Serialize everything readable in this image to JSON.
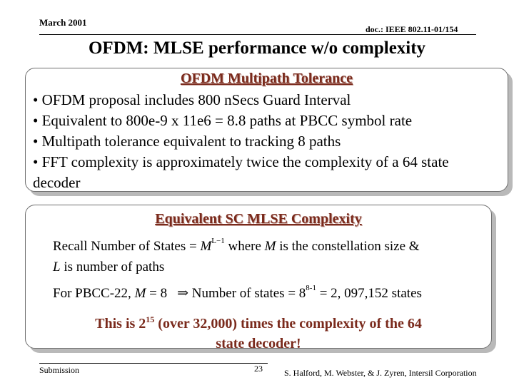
{
  "header": {
    "date": "March 2001",
    "doc_id": "doc.: IEEE 802.11-01/154"
  },
  "title": "OFDM: MLSE performance w/o complexity",
  "panel1": {
    "heading": "OFDM Multipath Tolerance",
    "bullets": [
      "• OFDM proposal includes 800 nSecs Guard Interval",
      "• Equivalent to 800e-9 x 11e6 = 8.8 paths at PBCC symbol rate",
      "• Multipath tolerance equivalent to tracking 8 paths",
      "• FFT complexity is approximately twice the complexity of a 64 state"
    ],
    "continuation": "decoder"
  },
  "panel2": {
    "heading": "Equivalent SC MLSE Complexity",
    "line1_a": "Recall  Number of States = ",
    "line1_M": "M",
    "line1_sup": "L−1",
    "line1_b": "  where ",
    "line1_M2": "M",
    "line1_c": " is the constellation size &",
    "line2_L": "L",
    "line2_rest": " is number of paths",
    "line3_a": "For PBCC-22, ",
    "line3_M": "M",
    "line3_b": " = 8",
    "line3_arrow": "⇒",
    "line3_c": " Number of states = 8",
    "line3_sup": "8-1",
    "line3_d": " = 2, 097,152  states",
    "note_a": "This is 2",
    "note_sup": "15",
    "note_b": " (over 32,000) times the complexity of the 64",
    "note_c": "state decoder!"
  },
  "footer": {
    "left": "Submission",
    "page": "23",
    "right": "S. Halford, M. Webster, & J. Zyren, Intersil Corporation"
  }
}
